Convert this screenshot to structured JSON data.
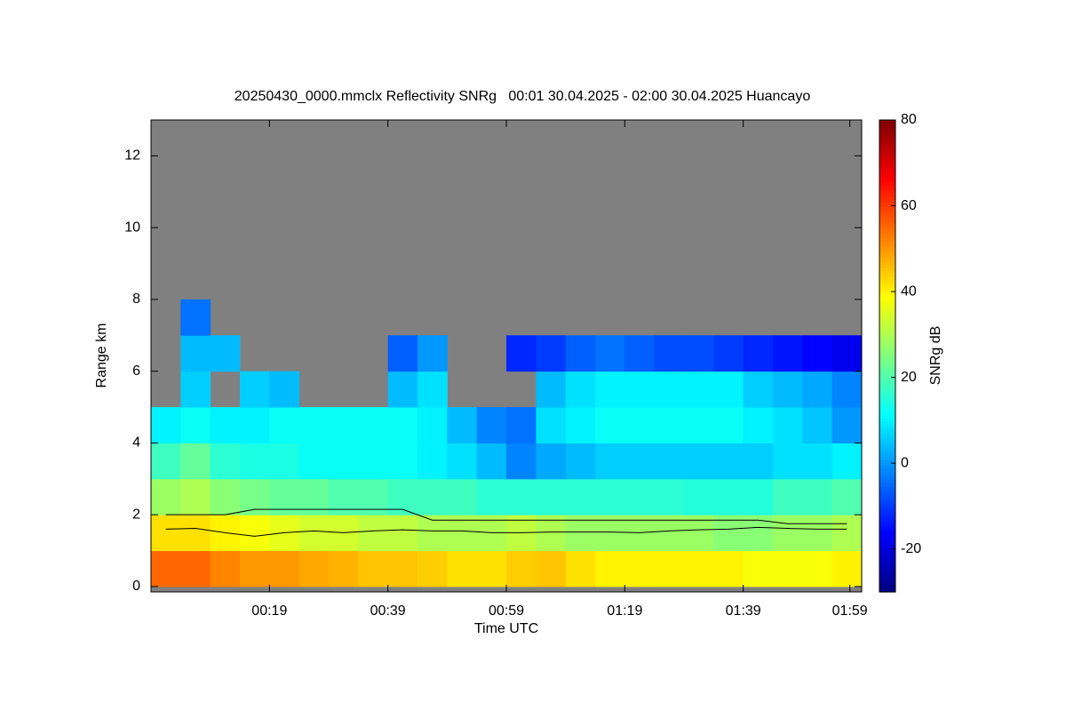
{
  "chart_data": {
    "type": "heatmap",
    "title": "20250430_0000.mmclx Reflectivity SNRg   00:01 30.04.2025 - 02:00 30.04.2025 Huancayo",
    "xlabel": "Time UTC",
    "ylabel": "Range km",
    "colorbar_label": "SNRg dB",
    "xlim": [
      0,
      120
    ],
    "xticks": [
      {
        "value": 20,
        "label": "00:19"
      },
      {
        "value": 40,
        "label": "00:39"
      },
      {
        "value": 60,
        "label": "00:59"
      },
      {
        "value": 80,
        "label": "01:19"
      },
      {
        "value": 100,
        "label": "01:39"
      },
      {
        "value": 118,
        "label": "01:59"
      }
    ],
    "ylim": [
      -0.15,
      13
    ],
    "yticks": [
      0,
      2,
      4,
      6,
      8,
      10,
      12
    ],
    "clim": [
      -30,
      80
    ],
    "cticks": [
      -20,
      0,
      20,
      40,
      60,
      80
    ],
    "colormap": "jet",
    "background": "#808080",
    "x": [
      2.5,
      7.5,
      12.5,
      17.5,
      22.5,
      27.5,
      32.5,
      37.5,
      42.5,
      47.5,
      52.5,
      57.5,
      62.5,
      67.5,
      72.5,
      77.5,
      82.5,
      87.5,
      92.5,
      97.5,
      102.5,
      107.5,
      112.5,
      117.5
    ],
    "y": [
      0.5,
      1.5,
      2.5,
      3.5,
      4.5,
      5.5,
      6.5,
      7.5,
      8.5,
      9.5,
      10.5,
      11.5,
      12.5
    ],
    "z": [
      [
        55,
        55,
        52,
        50,
        50,
        48,
        47,
        45,
        45,
        44,
        42,
        42,
        44,
        45,
        42,
        40,
        40,
        40,
        40,
        40,
        38,
        38,
        38,
        40
      ],
      [
        42,
        42,
        40,
        38,
        36,
        34,
        34,
        32,
        32,
        30,
        30,
        30,
        32,
        30,
        28,
        28,
        28,
        28,
        28,
        26,
        26,
        28,
        28,
        30
      ],
      [
        28,
        30,
        26,
        24,
        22,
        22,
        20,
        20,
        18,
        18,
        18,
        16,
        16,
        16,
        16,
        16,
        16,
        16,
        15,
        15,
        15,
        18,
        18,
        20
      ],
      [
        18,
        22,
        16,
        14,
        14,
        12,
        12,
        12,
        12,
        10,
        8,
        4,
        -2,
        2,
        4,
        6,
        6,
        6,
        6,
        6,
        6,
        8,
        8,
        10
      ],
      [
        10,
        12,
        10,
        10,
        12,
        12,
        12,
        12,
        12,
        10,
        4,
        -2,
        -4,
        8,
        10,
        12,
        12,
        12,
        12,
        12,
        10,
        8,
        5,
        0
      ],
      [
        null,
        6,
        null,
        6,
        4,
        null,
        null,
        null,
        4,
        8,
        null,
        null,
        null,
        4,
        8,
        10,
        10,
        10,
        10,
        10,
        6,
        4,
        2,
        -2
      ],
      [
        null,
        4,
        4,
        null,
        null,
        null,
        null,
        null,
        -6,
        0,
        null,
        null,
        -12,
        -10,
        -6,
        -4,
        -6,
        -8,
        -8,
        -10,
        -12,
        -14,
        -16,
        -18
      ],
      [
        null,
        -4,
        null,
        null,
        null,
        null,
        null,
        null,
        null,
        null,
        null,
        null,
        null,
        null,
        null,
        null,
        null,
        null,
        null,
        null,
        null,
        null,
        null,
        null
      ],
      [
        null,
        null,
        null,
        null,
        null,
        null,
        null,
        null,
        null,
        null,
        null,
        null,
        null,
        null,
        null,
        null,
        null,
        null,
        null,
        null,
        null,
        null,
        null,
        null
      ],
      [
        null,
        null,
        null,
        null,
        null,
        null,
        null,
        null,
        null,
        null,
        null,
        null,
        null,
        null,
        null,
        null,
        null,
        null,
        null,
        null,
        null,
        null,
        null,
        null
      ],
      [
        null,
        null,
        null,
        null,
        null,
        null,
        null,
        null,
        null,
        null,
        null,
        null,
        null,
        null,
        null,
        null,
        null,
        null,
        null,
        null,
        null,
        null,
        null,
        null
      ],
      [
        null,
        null,
        null,
        null,
        null,
        null,
        null,
        null,
        null,
        null,
        null,
        null,
        null,
        null,
        null,
        null,
        null,
        null,
        null,
        null,
        null,
        null,
        null,
        null
      ],
      [
        null,
        null,
        null,
        null,
        null,
        null,
        null,
        null,
        null,
        null,
        null,
        null,
        null,
        null,
        null,
        null,
        null,
        null,
        null,
        null,
        null,
        null,
        null,
        null
      ]
    ],
    "overlays": [
      {
        "color": "#000000",
        "values": [
          2,
          2,
          2,
          2.15,
          2.15,
          2.15,
          2.15,
          2.15,
          2.15,
          1.85,
          1.85,
          1.85,
          1.85,
          1.85,
          1.85,
          1.85,
          1.85,
          1.85,
          1.85,
          1.85,
          1.85,
          1.75,
          1.75,
          1.75
        ]
      },
      {
        "color": "#000000",
        "values": [
          1.6,
          1.62,
          1.5,
          1.4,
          1.5,
          1.55,
          1.5,
          1.55,
          1.58,
          1.55,
          1.55,
          1.5,
          1.5,
          1.52,
          1.52,
          1.52,
          1.5,
          1.55,
          1.58,
          1.6,
          1.65,
          1.62,
          1.6,
          1.6
        ]
      }
    ]
  }
}
